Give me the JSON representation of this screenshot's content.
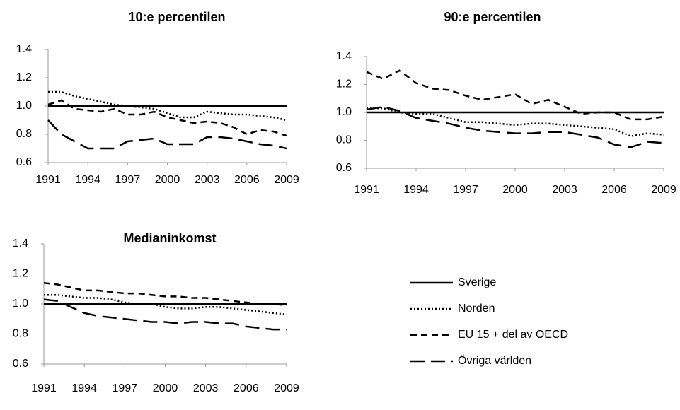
{
  "chart_data": [
    {
      "type": "line",
      "title": "10:e percentilen",
      "x": [
        1991,
        1992,
        1993,
        1994,
        1995,
        1996,
        1997,
        1998,
        1999,
        2000,
        2001,
        2002,
        2003,
        2004,
        2005,
        2006,
        2007,
        2008,
        2009
      ],
      "xlim": [
        1991,
        2009
      ],
      "xticks": [
        1991,
        1994,
        1997,
        2000,
        2003,
        2006,
        2009
      ],
      "ylim": [
        0.6,
        1.4
      ],
      "yticks": [
        0.6,
        0.8,
        {
          "value": 1,
          "label": "1.0"
        },
        1.2,
        1.4
      ],
      "series": [
        {
          "color": "#000000",
          "dash": "solid",
          "values": [
            1,
            1,
            1,
            1,
            1,
            1,
            1,
            1,
            1,
            1,
            1,
            1,
            1,
            1,
            1,
            1,
            1,
            1,
            1
          ]
        },
        {
          "color": "#000000",
          "dash": "dotted",
          "values": [
            1.1,
            1.1,
            1.07,
            1.05,
            1.03,
            1.01,
            1.0,
            0.99,
            0.98,
            0.95,
            0.92,
            0.92,
            0.96,
            0.95,
            0.94,
            0.94,
            0.93,
            0.92,
            0.9
          ]
        },
        {
          "color": "#000000",
          "dash": "short",
          "values": [
            1.01,
            1.04,
            0.98,
            0.97,
            0.96,
            0.98,
            0.94,
            0.94,
            0.96,
            0.92,
            0.9,
            0.88,
            0.89,
            0.88,
            0.85,
            0.8,
            0.83,
            0.82,
            0.79
          ]
        },
        {
          "color": "#000000",
          "dash": "long",
          "values": [
            0.9,
            0.8,
            0.75,
            0.7,
            0.7,
            0.7,
            0.75,
            0.76,
            0.77,
            0.73,
            0.73,
            0.73,
            0.78,
            0.78,
            0.77,
            0.75,
            0.73,
            0.72,
            0.7
          ]
        }
      ]
    },
    {
      "type": "line",
      "title": "90:e percentilen",
      "x": [
        1991,
        1992,
        1993,
        1994,
        1995,
        1996,
        1997,
        1998,
        1999,
        2000,
        2001,
        2002,
        2003,
        2004,
        2005,
        2006,
        2007,
        2008,
        2009
      ],
      "xlim": [
        1991,
        2009
      ],
      "xticks": [
        1991,
        1994,
        1997,
        2000,
        2003,
        2006,
        2009
      ],
      "ylim": [
        0.6,
        1.4
      ],
      "yticks": [
        0.6,
        0.8,
        {
          "value": 1,
          "label": "1.0"
        },
        1.2,
        1.4
      ],
      "series": [
        {
          "color": "#000000",
          "dash": "solid",
          "values": [
            1,
            1,
            1,
            1,
            1,
            1,
            1,
            1,
            1,
            1,
            1,
            1,
            1,
            1,
            1,
            1,
            1,
            1,
            1
          ]
        },
        {
          "color": "#000000",
          "dash": "dotted",
          "values": [
            1.03,
            1.03,
            1.0,
            0.99,
            0.99,
            0.96,
            0.93,
            0.93,
            0.92,
            0.91,
            0.92,
            0.92,
            0.91,
            0.9,
            0.89,
            0.88,
            0.83,
            0.85,
            0.84
          ]
        },
        {
          "color": "#000000",
          "dash": "short",
          "values": [
            1.29,
            1.24,
            1.3,
            1.21,
            1.17,
            1.16,
            1.12,
            1.09,
            1.11,
            1.13,
            1.06,
            1.09,
            1.04,
            0.99,
            1.0,
            1.0,
            0.95,
            0.95,
            0.97
          ]
        },
        {
          "color": "#000000",
          "dash": "long",
          "values": [
            1.02,
            1.04,
            1.01,
            0.96,
            0.94,
            0.92,
            0.89,
            0.87,
            0.86,
            0.85,
            0.85,
            0.86,
            0.86,
            0.84,
            0.82,
            0.77,
            0.75,
            0.79,
            0.78
          ]
        }
      ]
    },
    {
      "type": "line",
      "title": "Medianinkomst",
      "x": [
        1991,
        1992,
        1993,
        1994,
        1995,
        1996,
        1997,
        1998,
        1999,
        2000,
        2001,
        2002,
        2003,
        2004,
        2005,
        2006,
        2007,
        2008,
        2009
      ],
      "xlim": [
        1991,
        2009
      ],
      "xticks": [
        1991,
        1994,
        1997,
        2000,
        2003,
        2006,
        2009
      ],
      "ylim": [
        0.6,
        1.4
      ],
      "yticks": [
        0.6,
        0.8,
        {
          "value": 1,
          "label": "1.0"
        },
        1.2,
        1.4
      ],
      "legend": "right",
      "series": [
        {
          "name": "Sverige",
          "color": "#000000",
          "dash": "solid",
          "values": [
            1,
            1,
            1,
            1,
            1,
            1,
            1,
            1,
            1,
            1,
            1,
            1,
            1,
            1,
            1,
            1,
            1,
            1,
            1
          ]
        },
        {
          "name": "Norden",
          "color": "#000000",
          "dash": "dotted",
          "values": [
            1.06,
            1.06,
            1.05,
            1.04,
            1.04,
            1.03,
            1.01,
            1.0,
            1.0,
            0.98,
            0.97,
            0.97,
            0.98,
            0.98,
            0.97,
            0.96,
            0.95,
            0.94,
            0.93
          ]
        },
        {
          "name": "EU 15 + del av OECD",
          "color": "#000000",
          "dash": "short",
          "values": [
            1.14,
            1.13,
            1.11,
            1.09,
            1.09,
            1.08,
            1.07,
            1.07,
            1.06,
            1.05,
            1.05,
            1.04,
            1.04,
            1.03,
            1.02,
            1.01,
            1.0,
            1.0,
            0.99
          ]
        },
        {
          "name": "Övriga världen",
          "color": "#000000",
          "dash": "long",
          "values": [
            1.03,
            1.02,
            0.98,
            0.94,
            0.92,
            0.91,
            0.9,
            0.89,
            0.88,
            0.88,
            0.87,
            0.88,
            0.88,
            0.87,
            0.87,
            0.85,
            0.84,
            0.83,
            0.83
          ]
        }
      ]
    }
  ]
}
